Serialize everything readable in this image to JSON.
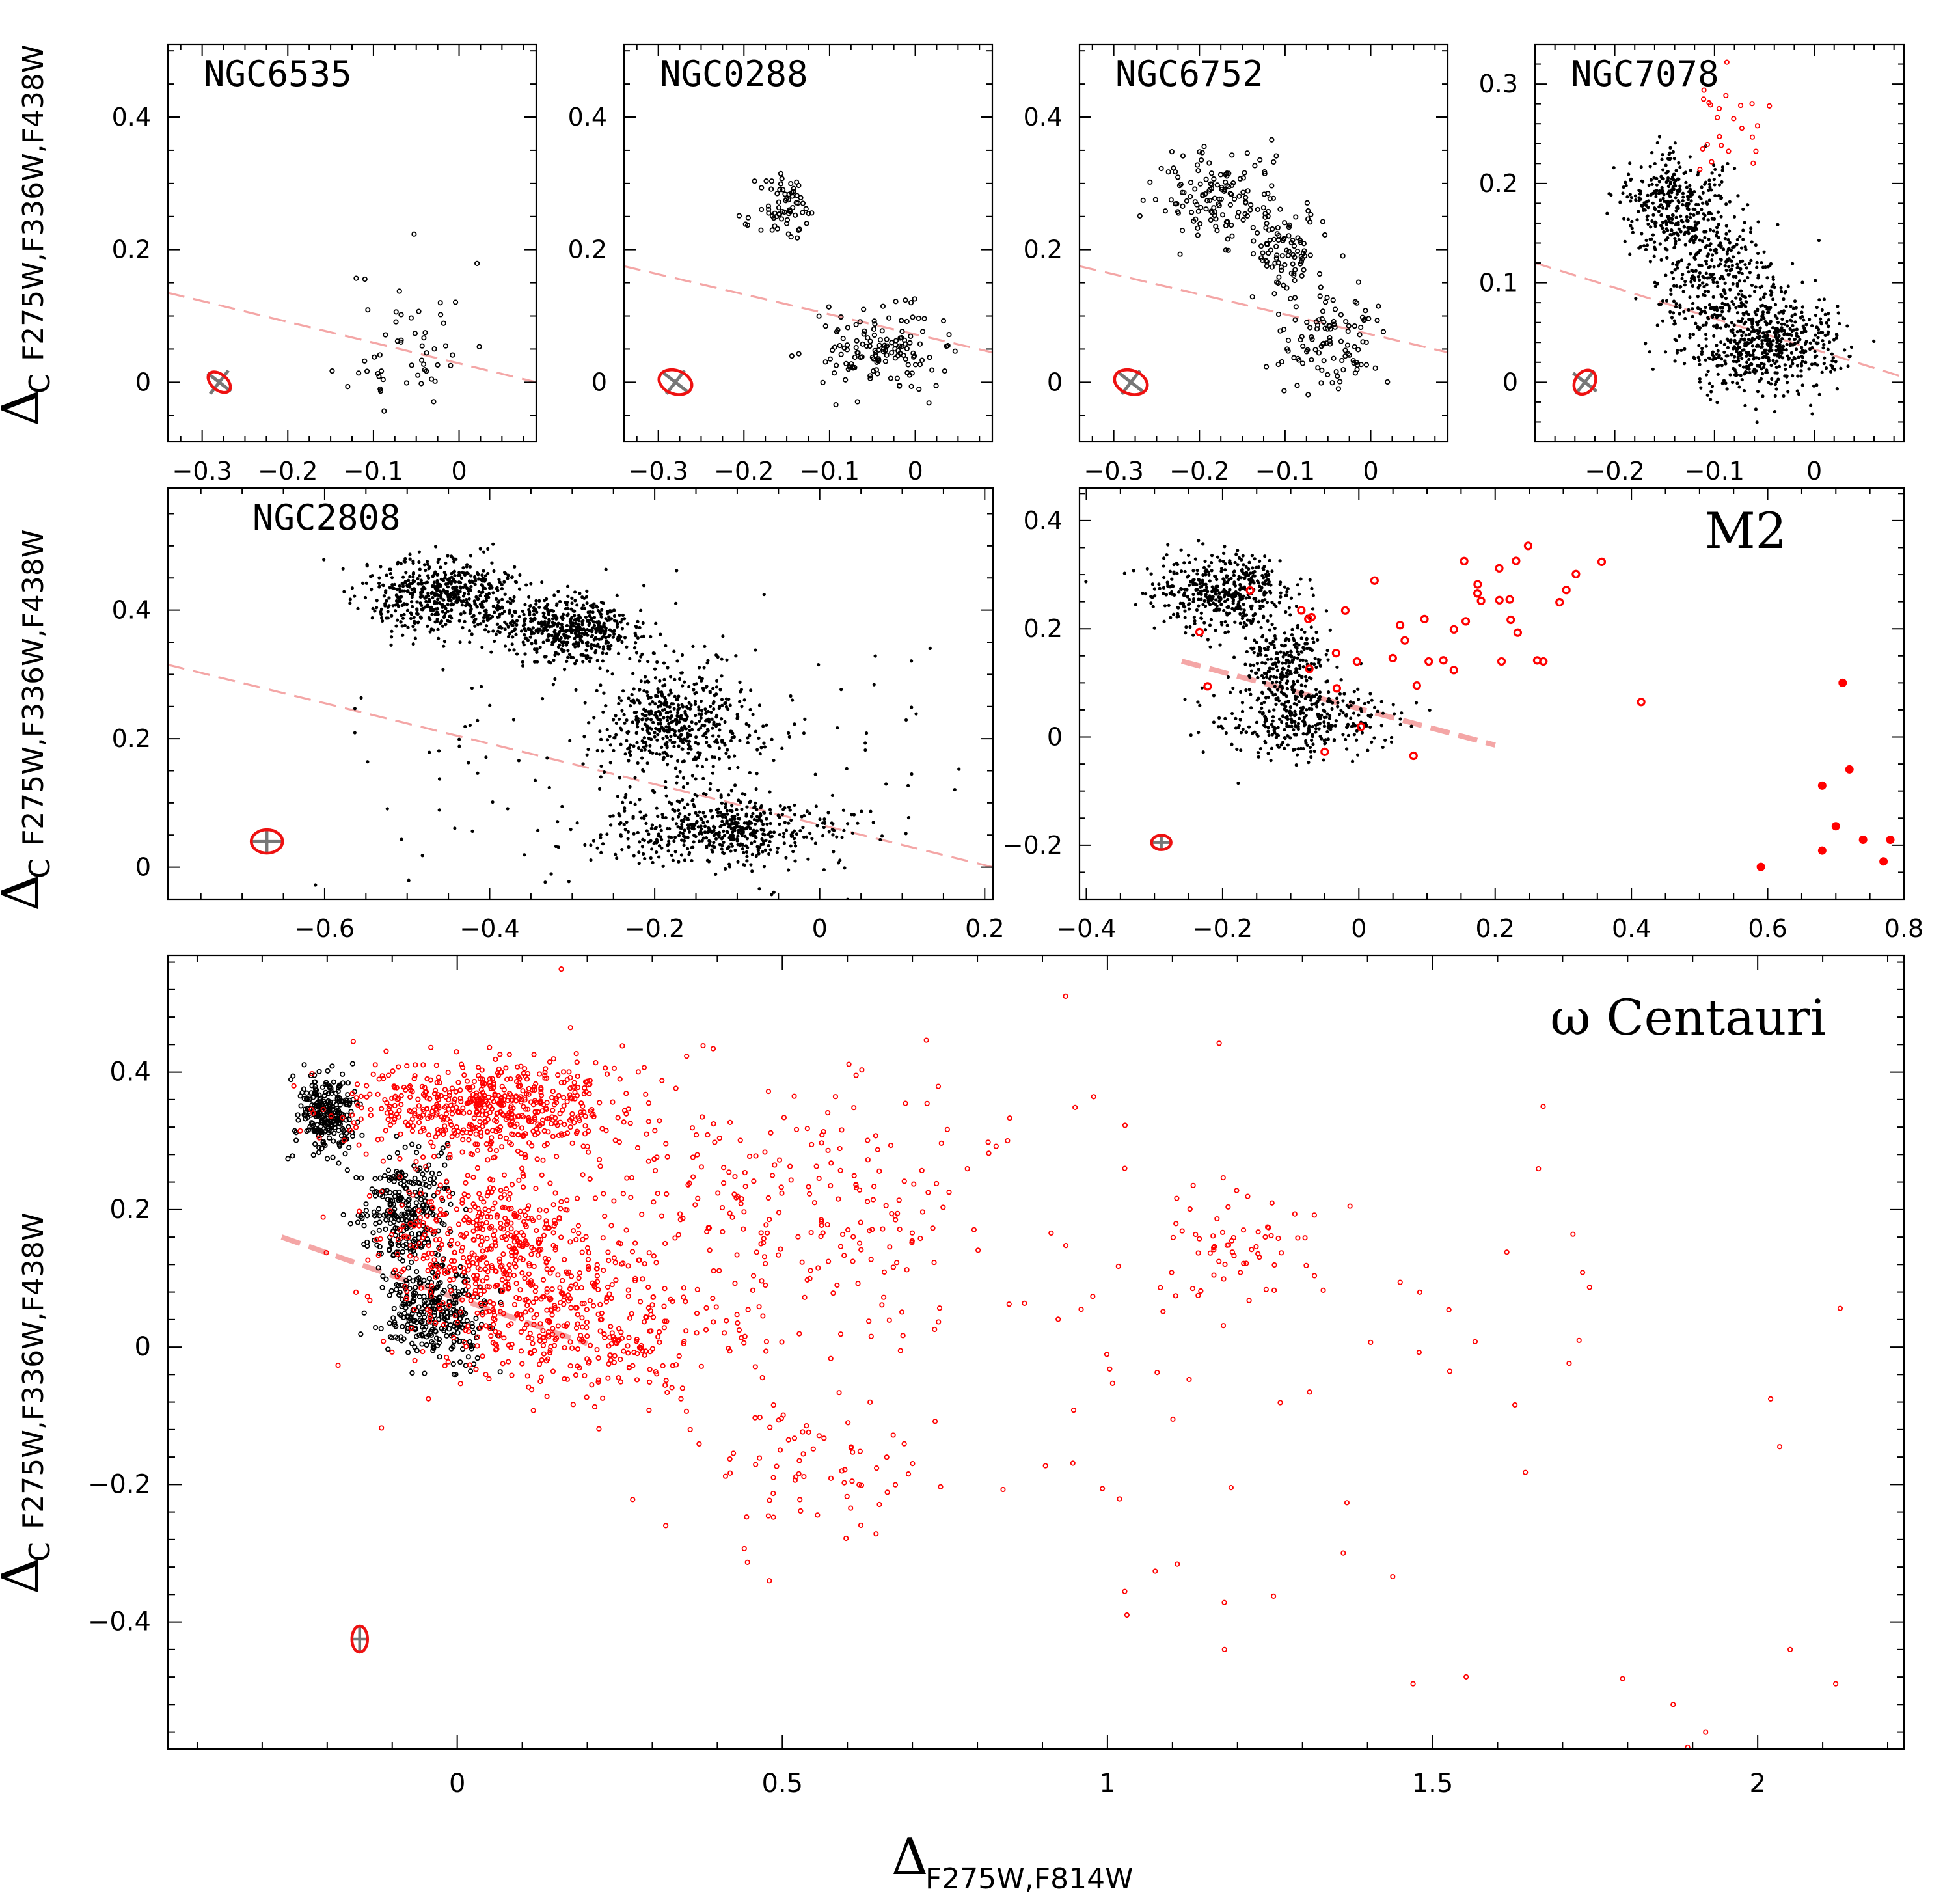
{
  "figure": {
    "ylabel_main": "Δ",
    "ylabel_sub_c": "C",
    "ylabel_sub": "F275W,F336W,F438W",
    "xlabel_main": "Δ",
    "xlabel_sub": "F275W,F814W"
  },
  "chart_data": [
    {
      "id": "ngc6535",
      "type": "scatter",
      "title": "NGC6535",
      "title_pos": "top-left",
      "xlim": [
        -0.34,
        0.09
      ],
      "ylim": [
        -0.09,
        0.51
      ],
      "xticks": [
        -0.3,
        -0.2,
        -0.1,
        0
      ],
      "yticks": [
        0,
        0.2,
        0.4
      ],
      "xticklabels": [
        "−0.3",
        "−0.2",
        "−0.1",
        "0"
      ],
      "yticklabels": [
        "0",
        "0.2",
        "0.4"
      ],
      "fiducial": {
        "x": [
          -0.34,
          0.09
        ],
        "y": [
          0.135,
          0.0
        ],
        "width": 2
      },
      "error": {
        "x": -0.28,
        "y": 0.0,
        "color": "#777777",
        "style": "cross-tilted"
      },
      "clumps": [
        {
          "cx": -0.06,
          "cy": 0.06,
          "sx": 0.035,
          "sy": 0.06,
          "n": 55,
          "style": "ring",
          "color": "#000000",
          "seed": 11
        }
      ]
    },
    {
      "id": "ngc0288",
      "type": "scatter",
      "title": "NGC0288",
      "title_pos": "top-left",
      "xlim": [
        -0.34,
        0.09
      ],
      "ylim": [
        -0.09,
        0.51
      ],
      "xticks": [
        -0.3,
        -0.2,
        -0.1,
        0
      ],
      "yticks": [
        0,
        0.2,
        0.4
      ],
      "xticklabels": [
        "−0.3",
        "−0.2",
        "−0.1",
        "0"
      ],
      "yticklabels": [
        "0",
        "0.2",
        "0.4"
      ],
      "fiducial": {
        "x": [
          -0.34,
          0.09
        ],
        "y": [
          0.175,
          0.045
        ],
        "width": 2
      },
      "error": {
        "x": -0.28,
        "y": 0.0,
        "color": "#777777",
        "style": "cross-tilted"
      },
      "clumps": [
        {
          "cx": -0.15,
          "cy": 0.26,
          "sx": 0.018,
          "sy": 0.025,
          "n": 70,
          "style": "ring",
          "color": "#000000",
          "seed": 21
        },
        {
          "cx": -0.04,
          "cy": 0.05,
          "sx": 0.035,
          "sy": 0.03,
          "n": 140,
          "style": "ring",
          "color": "#000000",
          "seed": 22
        }
      ]
    },
    {
      "id": "ngc6752",
      "type": "scatter",
      "title": "NGC6752",
      "title_pos": "top-left",
      "xlim": [
        -0.34,
        0.09
      ],
      "ylim": [
        -0.09,
        0.51
      ],
      "xticks": [
        -0.3,
        -0.2,
        -0.1,
        0
      ],
      "yticks": [
        0,
        0.2,
        0.4
      ],
      "xticklabels": [
        "−0.3",
        "−0.2",
        "−0.1",
        "0"
      ],
      "yticklabels": [
        "0",
        "0.2",
        "0.4"
      ],
      "fiducial": {
        "x": [
          -0.34,
          0.09
        ],
        "y": [
          0.175,
          0.045
        ],
        "width": 2
      },
      "error": {
        "x": -0.28,
        "y": 0.0,
        "color": "#777777",
        "style": "cross-tilted"
      },
      "clumps": [
        {
          "cx": -0.18,
          "cy": 0.28,
          "sx": 0.04,
          "sy": 0.035,
          "n": 140,
          "style": "ring",
          "color": "#000000",
          "seed": 31
        },
        {
          "cx": -0.1,
          "cy": 0.2,
          "sx": 0.025,
          "sy": 0.03,
          "n": 90,
          "style": "ring",
          "color": "#000000",
          "seed": 32
        },
        {
          "cx": -0.05,
          "cy": 0.06,
          "sx": 0.03,
          "sy": 0.035,
          "n": 110,
          "style": "ring",
          "color": "#000000",
          "seed": 33
        }
      ]
    },
    {
      "id": "ngc7078",
      "type": "scatter",
      "title": "NGC7078",
      "title_pos": "top-left",
      "xlim": [
        -0.28,
        0.09
      ],
      "ylim": [
        -0.06,
        0.34
      ],
      "xticks": [
        -0.2,
        -0.1,
        0
      ],
      "yticks": [
        0,
        0.1,
        0.2,
        0.3
      ],
      "xticklabels": [
        "−0.2",
        "−0.1",
        "0"
      ],
      "yticklabels": [
        "0",
        "0.1",
        "0.2",
        "0.3"
      ],
      "fiducial": {
        "x": [
          -0.28,
          0.09
        ],
        "y": [
          0.12,
          0.005
        ],
        "width": 2
      },
      "error": {
        "x": -0.23,
        "y": 0.0,
        "color": "#777777",
        "style": "cross-tilted"
      },
      "clumps": [
        {
          "cx": -0.14,
          "cy": 0.18,
          "sx": 0.028,
          "sy": 0.025,
          "n": 350,
          "style": "dot",
          "color": "#000000",
          "seed": 41
        },
        {
          "cx": -0.1,
          "cy": 0.11,
          "sx": 0.03,
          "sy": 0.03,
          "n": 300,
          "style": "dot",
          "color": "#000000",
          "seed": 42
        },
        {
          "cx": -0.05,
          "cy": 0.04,
          "sx": 0.04,
          "sy": 0.025,
          "n": 600,
          "style": "dot",
          "color": "#000000",
          "seed": 43
        },
        {
          "cx": -0.09,
          "cy": 0.25,
          "sx": 0.025,
          "sy": 0.03,
          "n": 24,
          "style": "ring",
          "color": "#ff0000",
          "seed": 44
        }
      ]
    },
    {
      "id": "ngc2808",
      "type": "scatter",
      "title": "NGC2808",
      "title_pos": "top-left",
      "xlim": [
        -0.79,
        0.21
      ],
      "ylim": [
        -0.05,
        0.59
      ],
      "xticks": [
        -0.6,
        -0.4,
        -0.2,
        0,
        0.2
      ],
      "yticks": [
        0,
        0.2,
        0.4
      ],
      "xticklabels": [
        "−0.6",
        "−0.4",
        "−0.2",
        "0",
        "0.2"
      ],
      "yticklabels": [
        "0",
        "0.2",
        "0.4"
      ],
      "fiducial": {
        "x": [
          -0.79,
          0.21
        ],
        "y": [
          0.315,
          0.0
        ],
        "width": 2
      },
      "error": {
        "x": -0.67,
        "y": 0.04,
        "color": "#777777",
        "style": "cross-upright"
      },
      "clumps": [
        {
          "cx": -0.45,
          "cy": 0.42,
          "sx": 0.05,
          "sy": 0.03,
          "n": 600,
          "style": "dot",
          "color": "#000000",
          "seed": 51
        },
        {
          "cx": -0.3,
          "cy": 0.37,
          "sx": 0.04,
          "sy": 0.025,
          "n": 500,
          "style": "dot",
          "color": "#000000",
          "seed": 52
        },
        {
          "cx": -0.17,
          "cy": 0.22,
          "sx": 0.05,
          "sy": 0.045,
          "n": 500,
          "style": "dot",
          "color": "#000000",
          "seed": 53
        },
        {
          "cx": -0.12,
          "cy": 0.06,
          "sx": 0.07,
          "sy": 0.025,
          "n": 500,
          "style": "dot",
          "color": "#000000",
          "seed": 54
        },
        {
          "cx": -0.2,
          "cy": 0.15,
          "sx": 0.2,
          "sy": 0.12,
          "n": 180,
          "style": "dot",
          "color": "#000000",
          "seed": 55
        }
      ]
    },
    {
      "id": "m2",
      "type": "scatter",
      "title": "M2",
      "title_pos": "top-right",
      "xlim": [
        -0.41,
        0.8
      ],
      "ylim": [
        -0.3,
        0.46
      ],
      "xticks": [
        -0.4,
        -0.2,
        0,
        0.2,
        0.4,
        0.6,
        0.8
      ],
      "yticks": [
        -0.2,
        0,
        0.2,
        0.4
      ],
      "xticklabels": [
        "−0.4",
        "−0.2",
        "0",
        "0.2",
        "0.4",
        "0.6",
        "0.8"
      ],
      "yticklabels": [
        "−0.2",
        "0",
        "0.2",
        "0.4"
      ],
      "fiducial": {
        "x": [
          -0.26,
          0.2
        ],
        "y": [
          0.14,
          -0.015
        ],
        "width": 5
      },
      "error": {
        "x": -0.29,
        "y": -0.195,
        "color": "#777777",
        "style": "cross-upright"
      },
      "clumps": [
        {
          "cx": -0.2,
          "cy": 0.27,
          "sx": 0.05,
          "sy": 0.035,
          "n": 450,
          "style": "dot",
          "color": "#000000",
          "seed": 61
        },
        {
          "cx": -0.11,
          "cy": 0.14,
          "sx": 0.03,
          "sy": 0.04,
          "n": 250,
          "style": "dot",
          "color": "#000000",
          "seed": 62
        },
        {
          "cx": -0.08,
          "cy": 0.03,
          "sx": 0.06,
          "sy": 0.035,
          "n": 350,
          "style": "dot",
          "color": "#000000",
          "seed": 63
        },
        {
          "cx": 0.12,
          "cy": 0.2,
          "sx": 0.14,
          "sy": 0.11,
          "n": 45,
          "style": "ring-big",
          "color": "#ff0000",
          "seed": 64
        }
      ],
      "points": {
        "style": "filled-big",
        "color": "#ff0000",
        "x": [
          0.59,
          0.68,
          0.68,
          0.7,
          0.71,
          0.72,
          0.74,
          0.77,
          0.78
        ],
        "y": [
          -0.24,
          -0.09,
          -0.21,
          -0.165,
          0.1,
          -0.06,
          -0.19,
          -0.23,
          -0.19
        ]
      }
    },
    {
      "id": "omega-cen",
      "type": "scatter",
      "title": "ω Centauri",
      "title_pos": "top-right",
      "xlim": [
        -0.445,
        2.225
      ],
      "ylim": [
        -0.585,
        0.57
      ],
      "xticks": [
        0,
        0.5,
        1,
        1.5,
        2
      ],
      "yticks": [
        -0.4,
        -0.2,
        0,
        0.2,
        0.4
      ],
      "xticklabels": [
        "0",
        "0.5",
        "1",
        "1.5",
        "2"
      ],
      "yticklabels": [
        "−0.4",
        "−0.2",
        "0",
        "0.2",
        "0.4"
      ],
      "fiducial": {
        "x": [
          -0.27,
          0.2
        ],
        "y": [
          0.16,
          0.005
        ],
        "width": 5
      },
      "error": {
        "x": -0.15,
        "y": -0.425,
        "color": "#777777",
        "style": "cross-upright"
      },
      "clumps": [
        {
          "cx": -0.2,
          "cy": 0.34,
          "sx": 0.025,
          "sy": 0.03,
          "n": 260,
          "style": "ring",
          "color": "#000000",
          "seed": 71
        },
        {
          "cx": -0.08,
          "cy": 0.2,
          "sx": 0.035,
          "sy": 0.04,
          "n": 280,
          "style": "ring",
          "color": "#000000",
          "seed": 72
        },
        {
          "cx": -0.03,
          "cy": 0.05,
          "sx": 0.04,
          "sy": 0.035,
          "n": 300,
          "style": "ring",
          "color": "#000000",
          "seed": 73
        },
        {
          "cx": 0.05,
          "cy": 0.35,
          "sx": 0.11,
          "sy": 0.035,
          "n": 600,
          "style": "ring",
          "color": "#ff0000",
          "seed": 74
        },
        {
          "cx": 0.05,
          "cy": 0.15,
          "sx": 0.08,
          "sy": 0.05,
          "n": 450,
          "style": "ring",
          "color": "#ff0000",
          "seed": 75
        },
        {
          "cx": 0.18,
          "cy": 0.02,
          "sx": 0.12,
          "sy": 0.05,
          "n": 350,
          "style": "ring",
          "color": "#ff0000",
          "seed": 76
        },
        {
          "cx": 0.5,
          "cy": 0.2,
          "sx": 0.2,
          "sy": 0.1,
          "n": 260,
          "style": "ring",
          "color": "#ff0000",
          "seed": 77
        },
        {
          "cx": 1.2,
          "cy": 0.15,
          "sx": 0.07,
          "sy": 0.04,
          "n": 60,
          "style": "ring",
          "color": "#ff0000",
          "seed": 78
        },
        {
          "cx": 0.55,
          "cy": -0.17,
          "sx": 0.09,
          "sy": 0.05,
          "n": 70,
          "style": "ring",
          "color": "#ff0000",
          "seed": 79
        },
        {
          "cx": 1.2,
          "cy": -0.05,
          "sx": 0.45,
          "sy": 0.2,
          "n": 70,
          "style": "ring",
          "color": "#ff0000",
          "seed": 80
        }
      ],
      "points": {
        "style": "ring",
        "color": "#ff0000",
        "x": [
          0.16,
          0.48,
          1.03,
          1.18,
          1.47,
          1.87,
          1.92,
          2.05,
          2.12
        ],
        "y": [
          0.55,
          -0.34,
          -0.39,
          -0.44,
          -0.49,
          -0.52,
          -0.56,
          -0.44,
          -0.49
        ]
      }
    }
  ]
}
